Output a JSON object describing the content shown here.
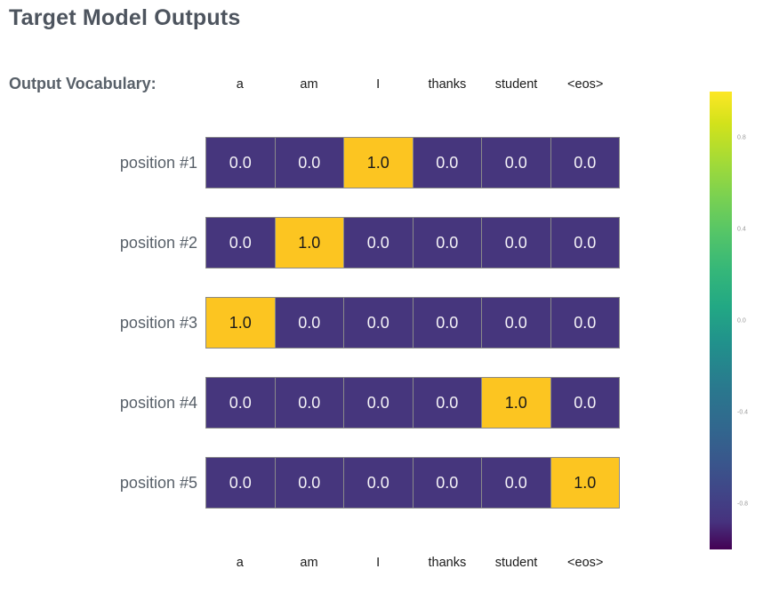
{
  "page": {
    "title": "Target Model Outputs",
    "vocab_label": "Output Vocabulary:"
  },
  "colors": {
    "heading_text": "#4d545e",
    "label_text": "#586069",
    "vocab_text": "#1a1a1a",
    "cell_low": "#46367d",
    "cell_high": "#fcc521",
    "cell_text_low": "#f5f3f7",
    "cell_text_high": "#1a1a1a",
    "cell_border": "#8a8a8a",
    "tick_text": "#9a9a9a"
  },
  "chart_data": {
    "type": "heatmap",
    "title": "Target Model Outputs",
    "columns": [
      "a",
      "am",
      "I",
      "thanks",
      "student",
      "<eos>"
    ],
    "rows": [
      "position #1",
      "position #2",
      "position #3",
      "position #4",
      "position #5"
    ],
    "values": [
      [
        0.0,
        0.0,
        1.0,
        0.0,
        0.0,
        0.0
      ],
      [
        0.0,
        1.0,
        0.0,
        0.0,
        0.0,
        0.0
      ],
      [
        1.0,
        0.0,
        0.0,
        0.0,
        0.0,
        0.0
      ],
      [
        0.0,
        0.0,
        0.0,
        0.0,
        1.0,
        0.0
      ],
      [
        0.0,
        0.0,
        0.0,
        0.0,
        0.0,
        1.0
      ]
    ],
    "value_format": "one_decimal",
    "colormap": "viridis",
    "x_axis_top_labels": [
      "a",
      "am",
      "I",
      "thanks",
      "student",
      "<eos>"
    ],
    "x_axis_bottom_labels": [
      "a",
      "am",
      "I",
      "thanks",
      "student",
      "<eos>"
    ],
    "colorbar": {
      "position": "right",
      "range": [
        -1,
        1
      ],
      "tick_values": [
        0.8,
        0.4,
        0.0,
        -0.4,
        -0.8
      ],
      "tick_labels": [
        "0.8",
        "0.4",
        "0.0",
        "-0.4",
        "-0.8"
      ]
    }
  }
}
